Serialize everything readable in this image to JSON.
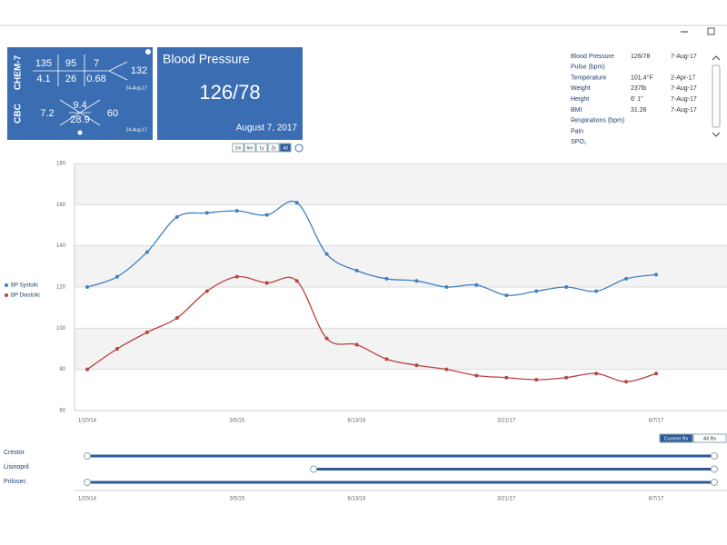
{
  "labs": {
    "chem7": {
      "label": "CHEM-7",
      "values": [
        "135",
        "95",
        "7",
        "4.1",
        "26",
        "0.68",
        "132"
      ],
      "date": "24-Aug-17"
    },
    "cbc": {
      "label": "CBC",
      "values": [
        "7.2",
        "9.4",
        "28.9",
        "60"
      ],
      "date": "24-Aug-17"
    }
  },
  "bp_card": {
    "title": "Blood Pressure",
    "value": "126/78",
    "date": "August 7, 2017"
  },
  "range_buttons": [
    "1m",
    "6m",
    "1y",
    "2y",
    "All"
  ],
  "vitals": [
    {
      "name": "Blood Pressure",
      "value": "126/78",
      "date": "7-Aug-17"
    },
    {
      "name": "Pulse (bpm)"
    },
    {
      "name": "Temperature",
      "value": "101.4°F",
      "date": "2-Apr-17"
    },
    {
      "name": "Weight",
      "value": "237lb",
      "date": "7-Aug-17"
    },
    {
      "name": "Height",
      "value": "6' 1\"",
      "date": "7-Aug-17"
    },
    {
      "name": "BMI",
      "value": "31.26",
      "date": "7-Aug-17"
    },
    {
      "name": "Respirations (bpm)"
    },
    {
      "name": "Pain"
    },
    {
      "name": "SPO₂"
    }
  ],
  "chart_data": {
    "type": "line",
    "categories": [
      "1/20/14",
      null,
      null,
      null,
      null,
      "3/5/15",
      null,
      null,
      null,
      "6/13/16",
      null,
      null,
      null,
      null,
      "3/21/17",
      null,
      null,
      null,
      null,
      "8/7/17"
    ],
    "series": [
      {
        "name": "BP Systolic",
        "color": "#3f7fc1",
        "values": [
          120,
          125,
          137,
          154,
          156,
          157,
          155,
          161,
          136,
          128,
          124,
          123,
          120,
          121,
          116,
          118,
          120,
          118,
          124,
          126
        ]
      },
      {
        "name": "BP Diastolic",
        "color": "#b9433f",
        "values": [
          80,
          90,
          98,
          105,
          118,
          125,
          122,
          123,
          95,
          92,
          85,
          82,
          80,
          77,
          76,
          75,
          76,
          78,
          74,
          78
        ]
      }
    ],
    "ylim": [
      60,
      180
    ],
    "yticks": [
      60,
      80,
      100,
      120,
      140,
      160,
      180
    ],
    "grid": true
  },
  "medications": {
    "filters": [
      "Current Rx",
      "All Rx"
    ],
    "items": [
      "Crestor",
      "Lisinopril",
      "Prilosec"
    ]
  }
}
